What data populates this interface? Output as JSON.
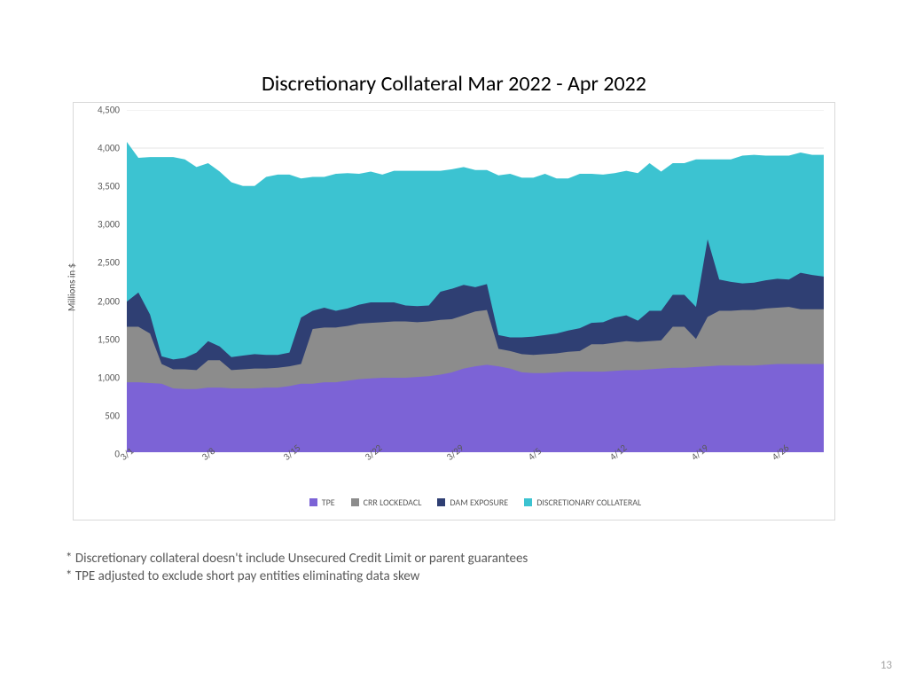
{
  "title": "Discretionary Collateral Mar 2022 - Apr 2022",
  "footnotes": [
    "* Discretionary collateral doesn't include Unsecured Credit Limit or parent guarantees",
    "* TPE adjusted to exclude short pay entities eliminating data skew"
  ],
  "page_number": "13",
  "chart": {
    "type": "stacked-area",
    "y_axis_label": "Millions in $",
    "ylim": [
      0,
      4500
    ],
    "ytick_step": 500,
    "y_ticks": [
      0,
      500,
      1000,
      1500,
      2000,
      2500,
      3000,
      3500,
      4000,
      4500
    ],
    "y_tick_labels": [
      "0",
      "500",
      "1,000",
      "1,500",
      "2,000",
      "2,500",
      "3,000",
      "3,500",
      "4,000",
      "4,500"
    ],
    "x_tick_labels": [
      "3/1",
      "3/8",
      "3/15",
      "3/22",
      "3/29",
      "4/5",
      "4/12",
      "4/19",
      "4/26"
    ],
    "x_tick_positions": [
      0,
      7,
      14,
      21,
      28,
      35,
      42,
      49,
      56
    ],
    "n_points": 61,
    "grid_color": "#e6e6e6",
    "axis_color": "#d9d9d9",
    "background_color": "#ffffff",
    "label_fontsize": 11,
    "series": [
      {
        "name": "TPE",
        "color": "#7c63d6",
        "values": [
          920,
          920,
          910,
          900,
          840,
          830,
          830,
          850,
          850,
          840,
          840,
          840,
          850,
          850,
          870,
          900,
          900,
          920,
          920,
          940,
          960,
          970,
          980,
          980,
          980,
          990,
          1000,
          1020,
          1050,
          1100,
          1130,
          1150,
          1130,
          1100,
          1050,
          1040,
          1040,
          1050,
          1060,
          1060,
          1060,
          1060,
          1070,
          1080,
          1080,
          1090,
          1100,
          1110,
          1110,
          1120,
          1130,
          1140,
          1140,
          1140,
          1140,
          1150,
          1160,
          1160,
          1160,
          1160,
          1160
        ]
      },
      {
        "name": "CRR LOCKEDACL",
        "color": "#8c8c8c",
        "values": [
          730,
          730,
          650,
          260,
          250,
          260,
          250,
          360,
          360,
          240,
          250,
          260,
          250,
          260,
          260,
          260,
          720,
          720,
          720,
          720,
          730,
          730,
          730,
          740,
          740,
          720,
          720,
          720,
          700,
          700,
          720,
          720,
          230,
          230,
          240,
          240,
          250,
          250,
          260,
          270,
          360,
          360,
          370,
          380,
          370,
          370,
          370,
          540,
          540,
          370,
          650,
          720,
          720,
          730,
          730,
          740,
          740,
          750,
          720,
          720,
          720
        ]
      },
      {
        "name": "DAM EXPOSURE",
        "color": "#2f3f73",
        "values": [
          330,
          450,
          250,
          100,
          130,
          150,
          230,
          250,
          180,
          170,
          180,
          190,
          180,
          170,
          180,
          610,
          240,
          260,
          220,
          230,
          250,
          270,
          260,
          250,
          210,
          210,
          210,
          370,
          400,
          400,
          320,
          340,
          180,
          180,
          220,
          240,
          250,
          260,
          280,
          300,
          280,
          290,
          330,
          340,
          280,
          400,
          390,
          420,
          420,
          420,
          1020,
          410,
          380,
          350,
          360,
          370,
          380,
          360,
          480,
          450,
          430
        ]
      },
      {
        "name": "DISCRETIONARY COLLATERAL",
        "color": "#3cc3d1",
        "values": [
          2100,
          1770,
          2070,
          2620,
          2660,
          2610,
          2440,
          2340,
          2300,
          2300,
          2230,
          2210,
          2340,
          2370,
          2340,
          1830,
          1760,
          1720,
          1800,
          1780,
          1720,
          1720,
          1680,
          1730,
          1770,
          1780,
          1770,
          1590,
          1570,
          1550,
          1540,
          1500,
          2100,
          2150,
          2100,
          2090,
          2120,
          2040,
          2000,
          2030,
          1960,
          1940,
          1900,
          1900,
          1940,
          1940,
          1830,
          1730,
          1730,
          1940,
          1050,
          1580,
          1610,
          1680,
          1680,
          1640,
          1620,
          1630,
          1580,
          1580,
          1600
        ]
      }
    ],
    "legend_items": [
      {
        "label": "TPE",
        "color": "#7c63d6"
      },
      {
        "label": "CRR LOCKEDACL",
        "color": "#8c8c8c"
      },
      {
        "label": "DAM EXPOSURE",
        "color": "#2f3f73"
      },
      {
        "label": "DISCRETIONARY COLLATERAL",
        "color": "#3cc3d1"
      }
    ]
  }
}
